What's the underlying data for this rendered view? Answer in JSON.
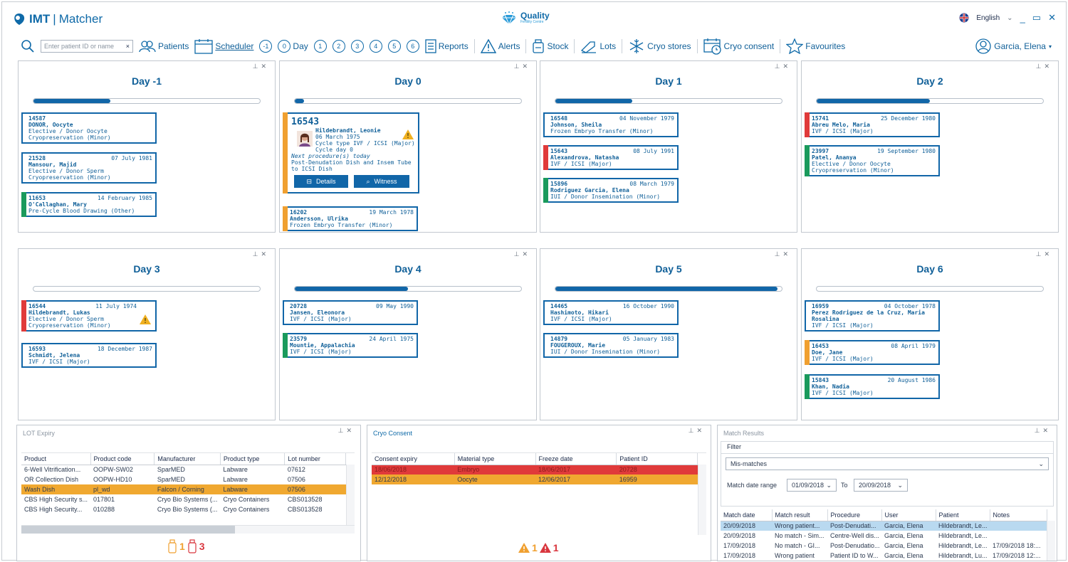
{
  "app": {
    "logo_bold": "IMT",
    "logo_thin": "Matcher",
    "center_title": "Quality",
    "center_subtitle": "Fertility Centre",
    "language": "English"
  },
  "toolbar": {
    "search_placeholder": "Enter patient ID or name",
    "search_clear": "×",
    "patients": "Patients",
    "scheduler": "Scheduler",
    "day_buttons": [
      "-1",
      "0",
      "1",
      "2",
      "3",
      "4",
      "5",
      "6"
    ],
    "day_label": "Day",
    "reports": "Reports",
    "alerts": "Alerts",
    "stock": "Stock",
    "lots": "Lots",
    "cryo_stores": "Cryo stores",
    "cryo_consent": "Cryo consent",
    "favourites": "Favourites",
    "user": "Garcia, Elena"
  },
  "days": [
    {
      "title": "Day -1",
      "progress": 0.34,
      "cards": [
        {
          "id": "14587",
          "date": "",
          "name": "DONOR, Oocyte",
          "lines": [
            "Elective / Donor Oocyte",
            "Cryopreservation (Minor)"
          ],
          "stripe": ""
        },
        {
          "id": "21528",
          "date": "07 July 1981",
          "name": "Mansour, Majid",
          "lines": [
            "Elective / Donor Sperm",
            "Cryopreservation (Minor)"
          ],
          "stripe": ""
        },
        {
          "id": "11653",
          "date": "14 February 1985",
          "name": "O'Callaghan, Mary",
          "lines": [
            "Pre-Cycle Blood Drawing (Other)"
          ],
          "stripe": "#1a9a5c"
        }
      ]
    },
    {
      "title": "Day 0",
      "progress": 0.04,
      "big": {
        "id": "16543",
        "name": "Hildebrandt, Leonie",
        "dob": "06 March 1975",
        "cycle_type": "Cycle type  IVF / ICSI (Major)",
        "cycle_day": "Cycle day   0",
        "next": "Next procedure(s) today",
        "proc": "Post-Denudation Dish and Insem Tube to ICSI Dish",
        "details": "Details",
        "witness": "Witness",
        "stripe": "#f0a030"
      },
      "cards": [
        {
          "id": "16202",
          "date": "19 March 1978",
          "name": "Andersson, Ulrika",
          "lines": [
            "Frozen Embryo Transfer (Minor)"
          ],
          "stripe": "#f0a030"
        }
      ]
    },
    {
      "title": "Day 1",
      "progress": 0.34,
      "cards": [
        {
          "id": "16548",
          "date": "04 November 1979",
          "name": "Johnson, Sheila",
          "lines": [
            "Frozen Embryo Transfer (Minor)"
          ],
          "stripe": ""
        },
        {
          "id": "15643",
          "date": "08 July 1991",
          "name": "Alexandrova, Natasha",
          "lines": [
            "IVF / ICSI (Major)"
          ],
          "stripe": "#e03a3a"
        },
        {
          "id": "15896",
          "date": "08 March 1979",
          "name": "Rodriguez Garcia, Elena",
          "lines": [
            "IUI / Donor Insemination (Minor)"
          ],
          "stripe": "#1a9a5c"
        }
      ]
    },
    {
      "title": "Day 2",
      "progress": 0.5,
      "cards": [
        {
          "id": "15741",
          "date": "25 December 1980",
          "name": "Abreu Melo, Maria",
          "lines": [
            "IVF / ICSI (Major)"
          ],
          "stripe": "#e03a3a"
        },
        {
          "id": "23997",
          "date": "19 September 1980",
          "name": "Patel, Ananya",
          "lines": [
            "Elective / Donor Oocyte",
            "Cryopreservation (Minor)"
          ],
          "stripe": "#1a9a5c"
        }
      ]
    },
    {
      "title": "Day 3",
      "progress": 0.0,
      "cards": [
        {
          "id": "16544",
          "date": "11 July 1974",
          "name": "Hildebrandt, Lukas",
          "lines": [
            "Elective / Donor Sperm",
            "Cryopreservation (Minor)"
          ],
          "stripe": "#e03a3a",
          "warn": true
        },
        {
          "id": "16593",
          "date": "18 December 1987",
          "name": "Schmidt, Jelena",
          "lines": [
            "IVF / ICSI (Major)"
          ],
          "stripe": ""
        }
      ]
    },
    {
      "title": "Day 4",
      "progress": 0.5,
      "cards": [
        {
          "id": "20728",
          "date": "09 May 1990",
          "name": "Jansen, Eleonora",
          "lines": [
            "IVF / ICSI (Major)"
          ],
          "stripe": ""
        },
        {
          "id": "23579",
          "date": "24 April 1975",
          "name": "Mountie, Appalachia",
          "lines": [
            "IVF / ICSI (Major)"
          ],
          "stripe": "#1a9a5c"
        }
      ]
    },
    {
      "title": "Day 5",
      "progress": 0.98,
      "cards": [
        {
          "id": "14465",
          "date": "16 October 1990",
          "name": "Hashimoto, Hikari",
          "lines": [
            "IVF / ICSI (Major)"
          ],
          "stripe": ""
        },
        {
          "id": "14879",
          "date": "05 January 1983",
          "name": "FOUGEROUX, Marie",
          "lines": [
            "IUI / Donor Insemination (Minor)"
          ],
          "stripe": ""
        }
      ]
    },
    {
      "title": "Day 6",
      "progress": 0.0,
      "cards": [
        {
          "id": "16959",
          "date": "04 October 1978",
          "name": "Perez Rodriguez de la Cruz, Maria Rosalina",
          "lines": [
            "IVF / ICSI (Major)"
          ],
          "stripe": ""
        },
        {
          "id": "16453",
          "date": "08 April 1979",
          "name": "Doe, Jane",
          "lines": [
            "IVF / ICSI (Major)"
          ],
          "stripe": "#f0a030"
        },
        {
          "id": "15843",
          "date": "20 August 1986",
          "name": "Khan, Nadia",
          "lines": [
            "IVF / ICSI (Major)"
          ],
          "stripe": "#1a9a5c"
        }
      ]
    }
  ],
  "lot_expiry": {
    "title": "LOT Expiry",
    "columns": [
      "Product",
      "Product code",
      "Manufacturer",
      "Product type",
      "Lot number"
    ],
    "rows": [
      {
        "cells": [
          "6-Well Vitrification...",
          "OOPW-SW02",
          "SparMED",
          "Labware",
          "07612"
        ],
        "hl": ""
      },
      {
        "cells": [
          "OR Collection Dish",
          "OOPW-HD10",
          "SparMED",
          "Labware",
          "07506"
        ],
        "hl": ""
      },
      {
        "cells": [
          "Wash Dish",
          "pl_wd",
          "Falcon / Corning",
          "Labware",
          "07506"
        ],
        "hl": "#f0a830"
      },
      {
        "cells": [
          "CBS High Security s...",
          "017801",
          "Cryo Bio Systems (...",
          "Cryo Containers",
          "CBS013528"
        ],
        "hl": ""
      },
      {
        "cells": [
          "CBS High Security...",
          "010288",
          "Cryo Bio Systems (...",
          "Cryo Containers",
          "CBS013528"
        ],
        "hl": ""
      }
    ],
    "count_orange": "1",
    "count_red": "3"
  },
  "cryo_consent": {
    "title": "Cryo Consent",
    "columns": [
      "Consent expiry",
      "Material type",
      "Freeze date",
      "Patient ID"
    ],
    "rows": [
      {
        "cells": [
          "18/06/2018",
          "Embryo",
          "18/06/2017",
          "20728"
        ],
        "hl": "#e03a3a"
      },
      {
        "cells": [
          "12/12/2018",
          "Oocyte",
          "12/06/2017",
          "16959"
        ],
        "hl": "#f0a830"
      }
    ],
    "count_orange": "1",
    "count_red": "1"
  },
  "match_results": {
    "title": "Match Results",
    "filter_label": "Filter",
    "filter_value": "Mis-matches",
    "range_label": "Match date range",
    "from": "01/09/2018",
    "to_label": "To",
    "to": "20/09/2018",
    "columns": [
      "Match date",
      "Match result",
      "Procedure",
      "User",
      "Patient",
      "Notes"
    ],
    "rows": [
      {
        "cells": [
          "20/09/2018",
          "Wrong patient...",
          "Post-Denudati...",
          "Garcia, Elena",
          "Hildebrandt, Le...",
          ""
        ],
        "hl": "#b9d9f0"
      },
      {
        "cells": [
          "20/09/2018",
          "No match - Sim...",
          "Centre-Well dis...",
          "Garcia, Elena",
          "Hildebrandt, Le...",
          ""
        ],
        "hl": ""
      },
      {
        "cells": [
          "17/09/2018",
          "No match - GI...",
          "Post-Denudatio...",
          "Garcia, Elena",
          "Hildebrandt, Le...",
          "17/09/2018 18:..."
        ],
        "hl": ""
      },
      {
        "cells": [
          "17/09/2018",
          "Wrong patient",
          "Patient ID to W...",
          "Garcia, Elena",
          "Hildebrandt, Lu...",
          "17/09/2018 12:..."
        ],
        "hl": ""
      }
    ]
  }
}
